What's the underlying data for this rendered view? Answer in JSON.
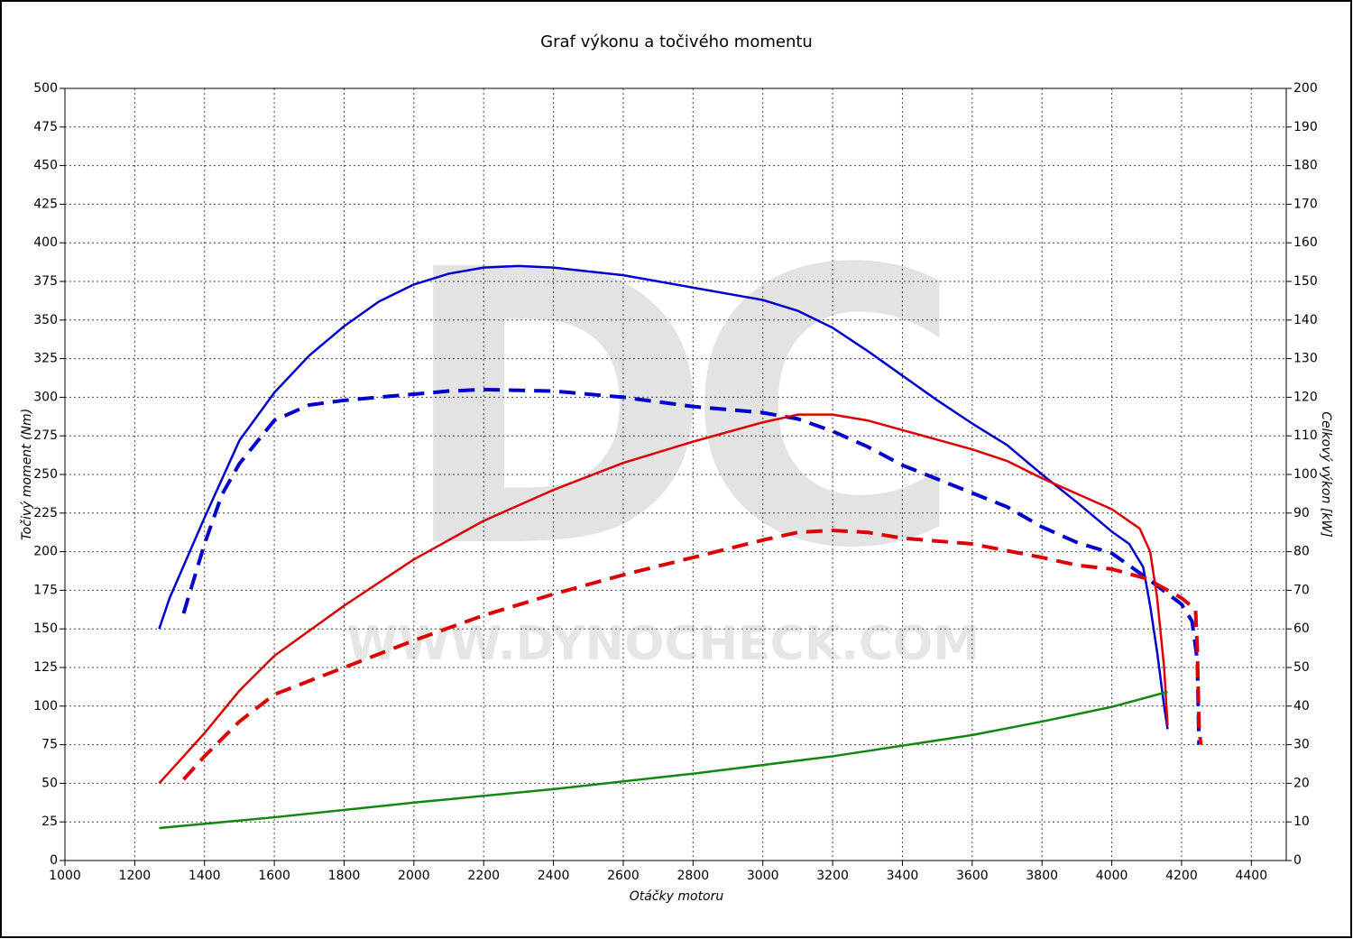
{
  "chart_data": {
    "type": "line",
    "title": "Graf výkonu a točivého momentu",
    "xlabel": "Otáčky motoru",
    "ylabel": "Točivý moment (Nm)",
    "y2label": "Celkový výkon [kW]",
    "watermark": "DC",
    "watermark_url": "WWW.DYNOCHECK.COM",
    "xlim": [
      1000,
      4500
    ],
    "xticks": [
      1000,
      1200,
      1400,
      1600,
      1800,
      2000,
      2200,
      2400,
      2600,
      2800,
      3000,
      3200,
      3400,
      3600,
      3800,
      4000,
      4200,
      4400
    ],
    "ylim": [
      0,
      500
    ],
    "yticks": [
      0,
      25,
      50,
      75,
      100,
      125,
      150,
      175,
      200,
      225,
      250,
      275,
      300,
      325,
      350,
      375,
      400,
      425,
      450,
      475,
      500
    ],
    "y2lim": [
      0,
      200
    ],
    "y2ticks": [
      0,
      10,
      20,
      30,
      40,
      50,
      60,
      70,
      80,
      90,
      100,
      110,
      120,
      130,
      140,
      150,
      160,
      170,
      180,
      190,
      200
    ],
    "grid": true,
    "series": [
      {
        "color": "#0000cc",
        "dashed": false,
        "axis": "y",
        "x": [
          1270,
          1300,
          1400,
          1500,
          1600,
          1700,
          1800,
          1900,
          2000,
          2100,
          2200,
          2300,
          2400,
          2600,
          2800,
          3000,
          3100,
          3200,
          3300,
          3400,
          3500,
          3600,
          3700,
          3800,
          3900,
          4000,
          4050,
          4090,
          4110,
          4130,
          4150,
          4160
        ],
        "values": [
          150,
          170,
          222,
          272,
          303,
          327,
          346,
          362,
          373,
          380,
          384,
          385,
          384,
          379,
          371,
          363,
          356,
          345,
          330,
          314,
          298,
          283,
          269,
          250,
          232,
          213,
          205,
          190,
          165,
          135,
          100,
          85
        ]
      },
      {
        "color": "#0000cc",
        "dashed": true,
        "axis": "y",
        "x": [
          1340,
          1400,
          1450,
          1500,
          1600,
          1700,
          1800,
          1900,
          2000,
          2100,
          2200,
          2400,
          2600,
          2800,
          3000,
          3100,
          3200,
          3300,
          3400,
          3500,
          3600,
          3700,
          3800,
          3900,
          4000,
          4100,
          4200,
          4230,
          4245,
          4250
        ],
        "values": [
          160,
          205,
          237,
          257,
          285,
          295,
          298,
          300,
          302,
          304,
          305,
          304,
          300,
          294,
          290,
          286,
          278,
          268,
          256,
          247,
          238,
          229,
          216,
          206,
          199,
          183,
          166,
          155,
          130,
          75
        ]
      },
      {
        "color": "#dd0000",
        "dashed": false,
        "axis": "y2",
        "x": [
          1270,
          1300,
          1400,
          1500,
          1600,
          1800,
          2000,
          2200,
          2400,
          2600,
          2800,
          3000,
          3100,
          3200,
          3300,
          3400,
          3600,
          3700,
          3800,
          3900,
          4000,
          4080,
          4110,
          4130,
          4150,
          4160
        ],
        "values": [
          20,
          23,
          33,
          44,
          53,
          66,
          78,
          88,
          96,
          103,
          108.5,
          113.5,
          115.5,
          115.5,
          114,
          111.5,
          106.5,
          103.5,
          99,
          95,
          91,
          86,
          80,
          68,
          50,
          35
        ]
      },
      {
        "color": "#dd0000",
        "dashed": true,
        "axis": "y2",
        "x": [
          1340,
          1400,
          1500,
          1600,
          1800,
          2000,
          2200,
          2400,
          2600,
          2800,
          3000,
          3100,
          3200,
          3300,
          3400,
          3600,
          3800,
          3900,
          4000,
          4100,
          4200,
          4240,
          4245,
          4250,
          4255
        ],
        "values": [
          21,
          27,
          36,
          43,
          50,
          57,
          63.5,
          69,
          74,
          78.5,
          83,
          85,
          85.5,
          85,
          83.5,
          82,
          78.5,
          76.5,
          75.5,
          73,
          68,
          65,
          55,
          35,
          30
        ]
      },
      {
        "color": "#118811",
        "dashed": false,
        "axis": "y2",
        "x": [
          1270,
          1600,
          2000,
          2400,
          2800,
          3200,
          3600,
          3800,
          4000,
          4160
        ],
        "values": [
          8.4,
          11.2,
          15,
          18.5,
          22.5,
          27,
          32.5,
          36,
          39.8,
          43.7
        ]
      }
    ]
  }
}
